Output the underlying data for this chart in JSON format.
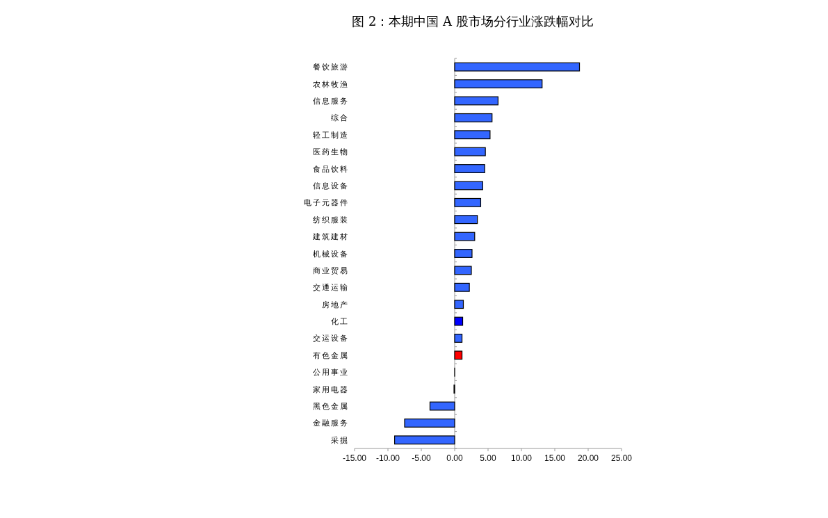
{
  "chart_data": {
    "type": "bar",
    "orientation": "horizontal",
    "title": "图 2：本期中国 A 股市场分行业涨跌幅对比",
    "categories": [
      "餐饮旅游",
      "农林牧渔",
      "信息服务",
      "综合",
      "轻工制造",
      "医药生物",
      "食品饮料",
      "信息设备",
      "电子元器件",
      "纺织服装",
      "建筑建材",
      "机械设备",
      "商业贸易",
      "交通运输",
      "房地产",
      "化工",
      "交运设备",
      "有色金属",
      "公用事业",
      "家用电器",
      "黑色金属",
      "金融服务",
      "采掘"
    ],
    "values": [
      18.7,
      13.1,
      6.5,
      5.6,
      5.3,
      4.6,
      4.5,
      4.2,
      3.9,
      3.4,
      3.0,
      2.6,
      2.5,
      2.2,
      1.3,
      1.2,
      1.1,
      1.1,
      0,
      -0.1,
      -3.7,
      -7.5,
      -9.0
    ],
    "colors": [
      "#3366ff",
      "#3366ff",
      "#3366ff",
      "#3366ff",
      "#3366ff",
      "#3366ff",
      "#3366ff",
      "#3366ff",
      "#3366ff",
      "#3366ff",
      "#3366ff",
      "#3366ff",
      "#3366ff",
      "#3366ff",
      "#3366ff",
      "#0000ff",
      "#3366ff",
      "#ff0000",
      "#3366ff",
      "#3366ff",
      "#3366ff",
      "#3366ff",
      "#3366ff"
    ],
    "xlim": [
      -15,
      25
    ],
    "xticks": [
      {
        "value": -15,
        "label": "-15.00"
      },
      {
        "value": -10,
        "label": "-10.00"
      },
      {
        "value": -5,
        "label": "-5.00"
      },
      {
        "value": 0,
        "label": "0.00"
      },
      {
        "value": 5,
        "label": "5.00"
      },
      {
        "value": 10,
        "label": "10.00"
      },
      {
        "value": 15,
        "label": "15.00"
      },
      {
        "value": 20,
        "label": "20.00"
      },
      {
        "value": 25,
        "label": "25.00"
      }
    ],
    "legend": false
  }
}
